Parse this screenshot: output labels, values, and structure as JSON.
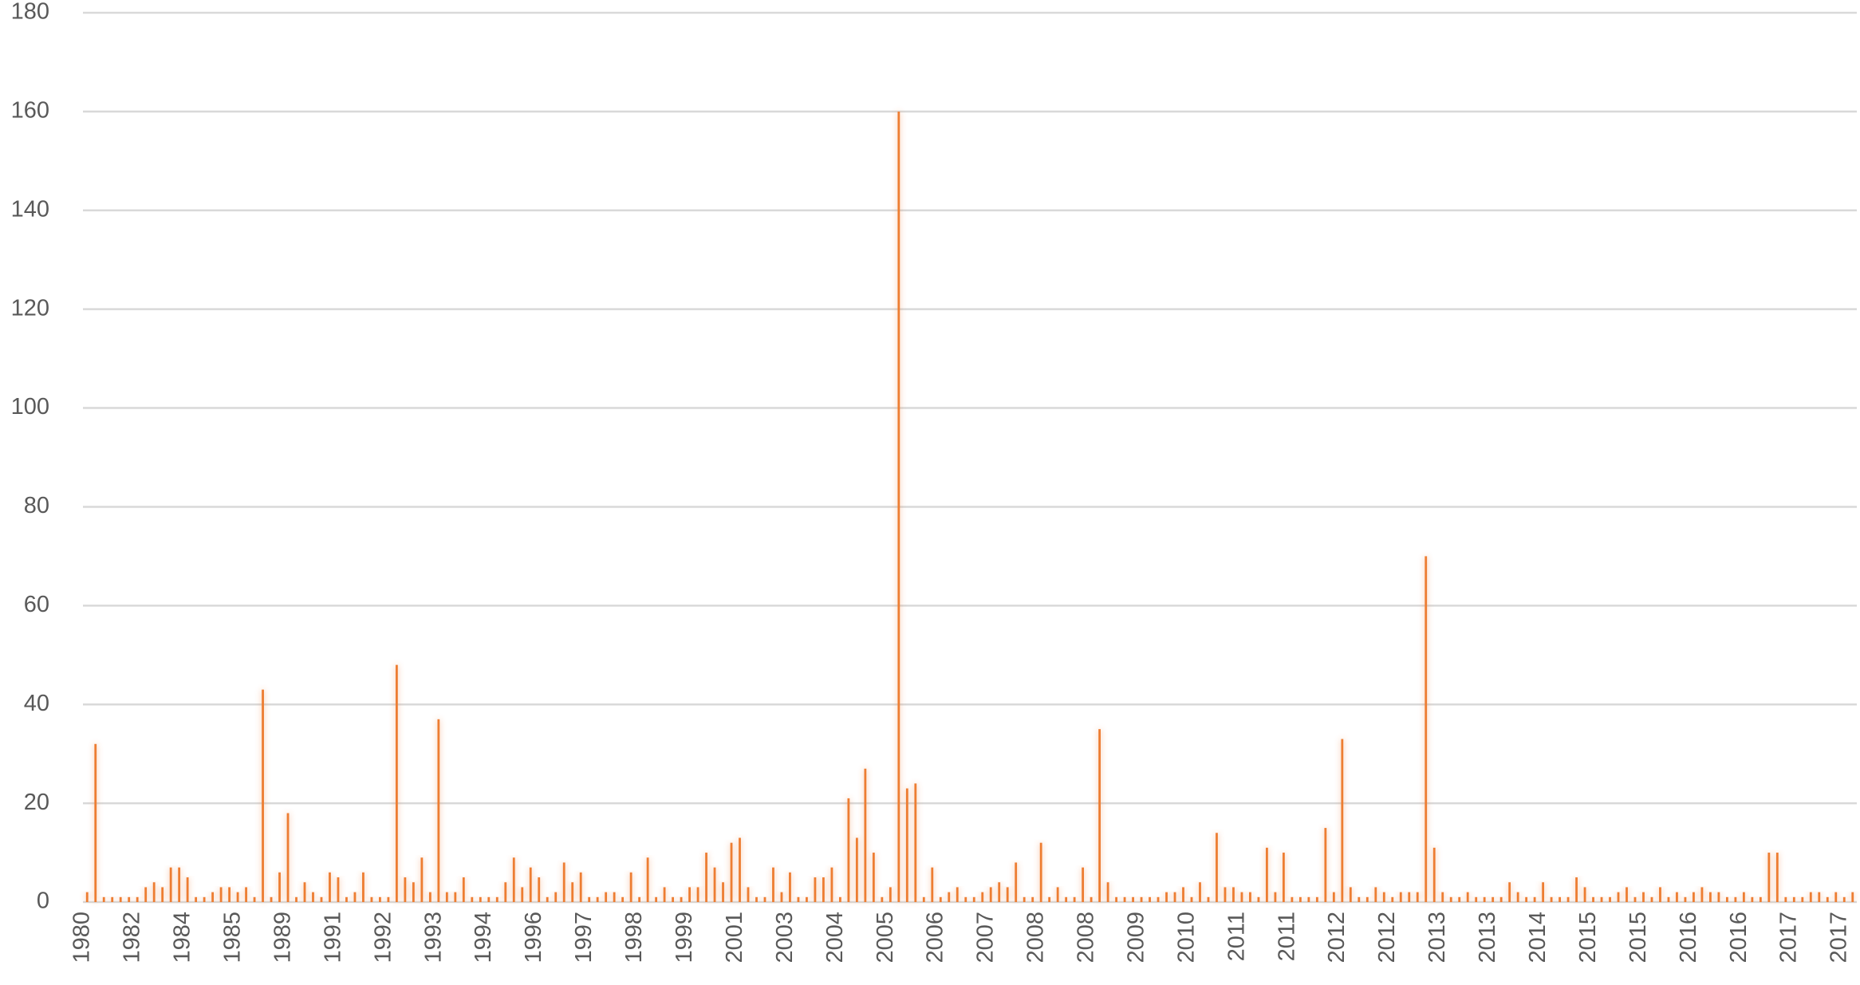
{
  "chart_data": {
    "type": "bar",
    "color": "#ed7d31",
    "grid": true,
    "ylim": [
      0,
      180
    ],
    "yticks": [
      0,
      20,
      40,
      60,
      80,
      100,
      120,
      140,
      160,
      180
    ],
    "categories": [
      "1980",
      null,
      null,
      null,
      null,
      null,
      "1982",
      null,
      null,
      null,
      null,
      null,
      "1984",
      null,
      null,
      null,
      null,
      null,
      "1985",
      null,
      null,
      null,
      null,
      null,
      "1989",
      null,
      null,
      null,
      null,
      null,
      "1991",
      null,
      null,
      null,
      null,
      null,
      "1992",
      null,
      null,
      null,
      null,
      null,
      "1993",
      null,
      null,
      null,
      null,
      null,
      "1994",
      null,
      null,
      null,
      null,
      null,
      "1996",
      null,
      null,
      null,
      null,
      null,
      "1997",
      null,
      null,
      null,
      null,
      null,
      "1998",
      null,
      null,
      null,
      null,
      null,
      "1999",
      null,
      null,
      null,
      null,
      null,
      "2001",
      null,
      null,
      null,
      null,
      null,
      "2003",
      null,
      null,
      null,
      null,
      null,
      "2004",
      null,
      null,
      null,
      null,
      null,
      "2005",
      null,
      null,
      null,
      null,
      null,
      "2006",
      null,
      null,
      null,
      null,
      null,
      "2007",
      null,
      null,
      null,
      null,
      null,
      "2008",
      null,
      null,
      null,
      null,
      null,
      "2008",
      null,
      null,
      null,
      null,
      null,
      "2009",
      null,
      null,
      null,
      null,
      null,
      "2010",
      null,
      null,
      null,
      null,
      null,
      "2011",
      null,
      null,
      null,
      null,
      null,
      "2011",
      null,
      null,
      null,
      null,
      null,
      "2012",
      null,
      null,
      null,
      null,
      null,
      "2012",
      null,
      null,
      null,
      null,
      null,
      "2013",
      null,
      null,
      null,
      null,
      null,
      "2013",
      null,
      null,
      null,
      null,
      null,
      "2014",
      null,
      null,
      null,
      null,
      null,
      "2015",
      null,
      null,
      null,
      null,
      null,
      "2015",
      null,
      null,
      null,
      null,
      null,
      "2016",
      null,
      null,
      null,
      null,
      null,
      "2016",
      null,
      null,
      null,
      null,
      null,
      "2017",
      null,
      null,
      null,
      null,
      null,
      "2017",
      null
    ],
    "values": [
      2,
      32,
      1,
      1,
      1,
      1,
      1,
      3,
      4,
      3,
      7,
      7,
      5,
      1,
      1,
      2,
      3,
      3,
      2,
      3,
      1,
      43,
      1,
      6,
      18,
      1,
      4,
      2,
      1,
      6,
      5,
      1,
      2,
      6,
      1,
      1,
      1,
      48,
      5,
      4,
      9,
      2,
      37,
      2,
      2,
      5,
      1,
      1,
      1,
      1,
      4,
      9,
      3,
      7,
      5,
      1,
      2,
      8,
      4,
      6,
      1,
      1,
      2,
      2,
      1,
      6,
      1,
      9,
      1,
      3,
      1,
      1,
      3,
      3,
      10,
      7,
      4,
      12,
      13,
      3,
      1,
      1,
      7,
      2,
      6,
      1,
      1,
      5,
      5,
      7,
      1,
      21,
      13,
      27,
      10,
      1,
      3,
      160,
      23,
      24,
      1,
      7,
      1,
      2,
      3,
      1,
      1,
      2,
      3,
      4,
      3,
      8,
      1,
      1,
      12,
      1,
      3,
      1,
      1,
      7,
      1,
      35,
      4,
      1,
      1,
      1,
      1,
      1,
      1,
      2,
      2,
      3,
      1,
      4,
      1,
      14,
      3,
      3,
      2,
      2,
      1,
      11,
      2,
      10,
      1,
      1,
      1,
      1,
      15,
      2,
      33,
      3,
      1,
      1,
      3,
      2,
      1,
      2,
      2,
      2,
      70,
      11,
      2,
      1,
      1,
      2,
      1,
      1,
      1,
      1,
      4,
      2,
      1,
      1,
      4,
      1,
      1,
      1,
      5,
      3,
      1,
      1,
      1,
      2,
      3,
      1,
      2,
      1,
      3,
      1,
      2,
      1,
      2,
      3,
      2,
      2,
      1,
      1,
      2,
      1,
      1,
      10,
      10,
      1,
      1,
      1,
      2,
      2,
      1,
      2,
      1,
      2
    ]
  }
}
